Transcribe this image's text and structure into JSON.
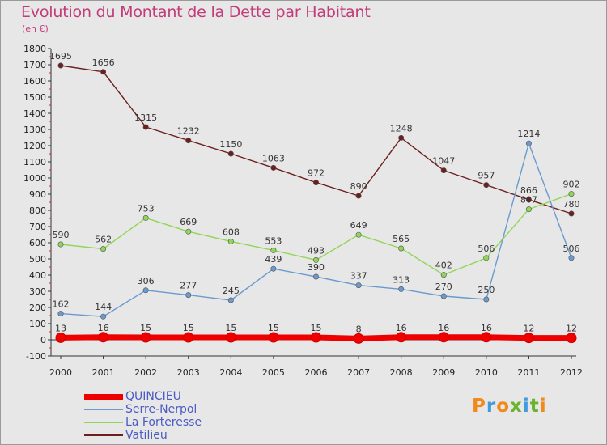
{
  "title": "Evolution du Montant de la Dette par Habitant",
  "unit": "(en €)",
  "brand": {
    "text": "Proxiti",
    "colors": [
      "#f08a1c",
      "#3f9adf",
      "#f08a1c",
      "#6ab42d",
      "#3f9adf",
      "#6ab42d",
      "#f08a1c"
    ]
  },
  "chart_data": {
    "type": "line",
    "x": [
      "2000",
      "2001",
      "2002",
      "2003",
      "2004",
      "2005",
      "2006",
      "2007",
      "2008",
      "2009",
      "2010",
      "2011",
      "2012"
    ],
    "ylim": [
      -100,
      1800
    ],
    "yticks": [
      -100,
      0,
      100,
      200,
      300,
      400,
      500,
      600,
      700,
      800,
      900,
      1000,
      1100,
      1200,
      1300,
      1400,
      1500,
      1600,
      1700,
      1800
    ],
    "grid": false,
    "legend_position": "bottom-left",
    "series": [
      {
        "name": "QUINCIEU",
        "color": "#ee0000",
        "values": [
          13,
          16,
          15,
          15,
          15,
          15,
          15,
          8,
          16,
          16,
          16,
          12,
          12
        ]
      },
      {
        "name": "Serre-Nerpol",
        "color": "#6a9ad0",
        "values": [
          162,
          144,
          306,
          277,
          245,
          439,
          390,
          337,
          313,
          270,
          250,
          1214,
          506
        ]
      },
      {
        "name": "La Forteresse",
        "color": "#90d657",
        "values": [
          590,
          562,
          753,
          669,
          608,
          553,
          493,
          649,
          565,
          402,
          506,
          807,
          902
        ]
      },
      {
        "name": "Vatilieu",
        "color": "#6d1f1f",
        "values": [
          1695,
          1656,
          1315,
          1232,
          1150,
          1063,
          972,
          890,
          1248,
          1047,
          957,
          866,
          780
        ]
      }
    ]
  }
}
